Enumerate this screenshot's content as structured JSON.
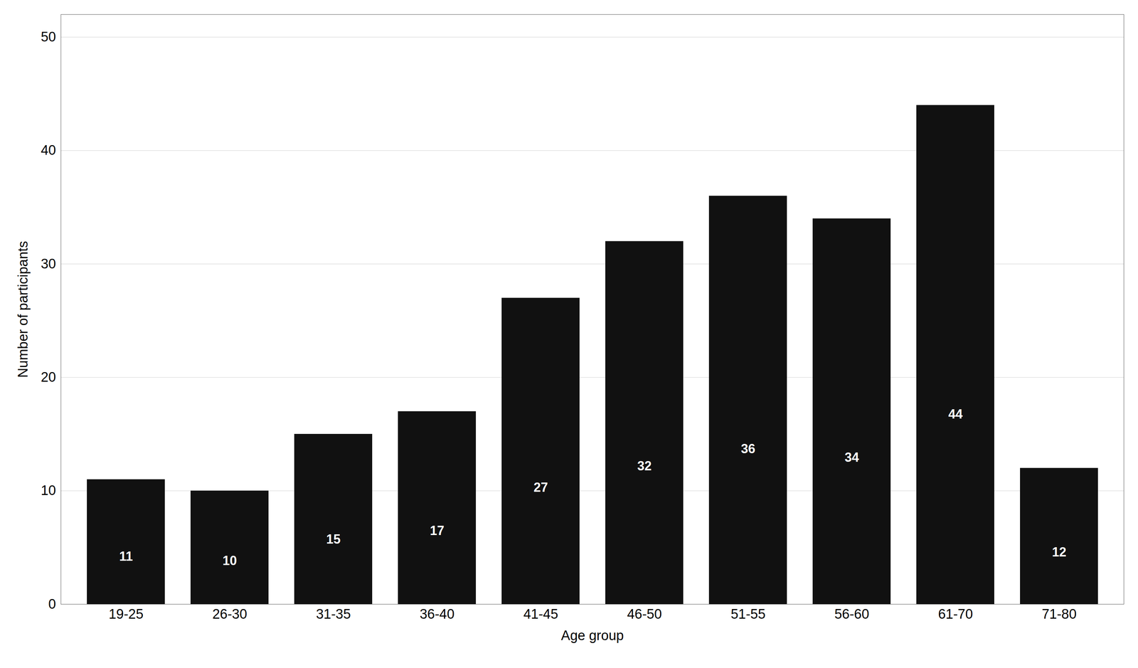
{
  "chart_data": {
    "type": "bar",
    "categories": [
      "19-25",
      "26-30",
      "31-35",
      "36-40",
      "41-45",
      "46-50",
      "51-55",
      "56-60",
      "61-70",
      "71-80"
    ],
    "values": [
      11,
      10,
      15,
      17,
      27,
      32,
      36,
      34,
      44,
      12
    ],
    "color": "#111111",
    "xlabel": "Age group",
    "ylabel": "Number of participants",
    "ylim": [
      0,
      52
    ],
    "yticks": [
      0,
      10,
      20,
      30,
      40,
      50
    ],
    "grid": true,
    "data_labels": true
  }
}
